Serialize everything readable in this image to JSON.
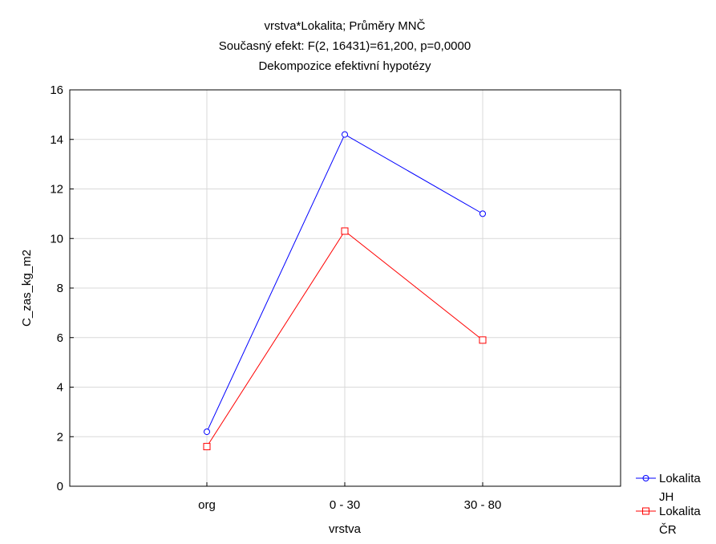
{
  "chart_data": {
    "type": "line",
    "title": "vrstva*Lokalita; Průměry MNČ",
    "subtitle": "Současný efekt: F(2, 16431)=61,200, p=0,0000",
    "subtitle2": "Dekompozice efektivní hypotézy",
    "xlabel": "vrstva",
    "ylabel": "C_zas_kg_m2",
    "categories": [
      "org",
      "0 - 30",
      "30 - 80"
    ],
    "ylim": [
      0,
      16
    ],
    "yticks": [
      "0",
      "2",
      "4",
      "6",
      "8",
      "10",
      "12",
      "14",
      "16"
    ],
    "grid": true,
    "legend_position": "bottom-right",
    "series": [
      {
        "name": "Lokalita JH",
        "name_line1": "Lokalita",
        "name_line2": "JH",
        "values": [
          2.2,
          14.2,
          11.0
        ],
        "color": "#0000ff",
        "marker": "circle"
      },
      {
        "name": "Lokalita ČR",
        "name_line1": "Lokalita",
        "name_line2": "ČR",
        "values": [
          1.6,
          10.3,
          5.9
        ],
        "color": "#ff0000",
        "marker": "square"
      }
    ]
  }
}
